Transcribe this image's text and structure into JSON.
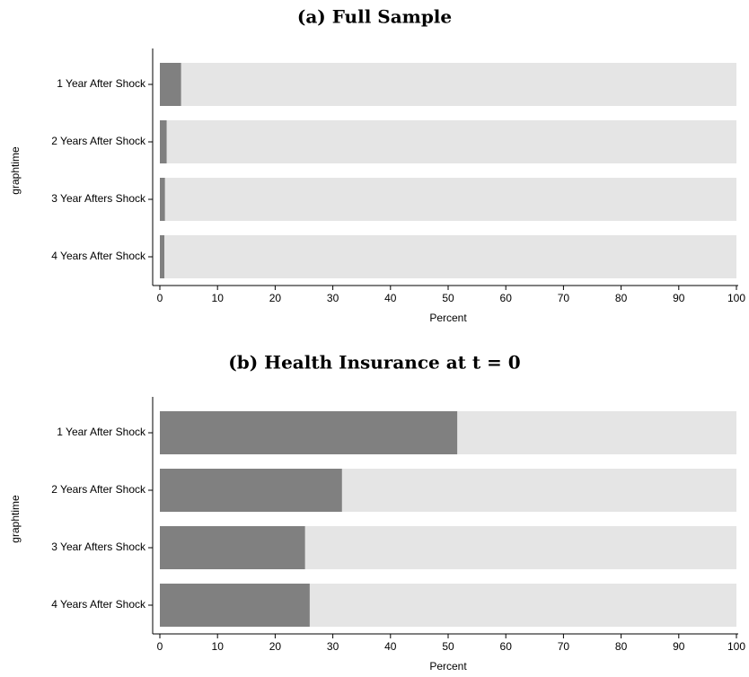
{
  "chart_data": [
    {
      "type": "stacked-bar-horizontal",
      "title": "(a) Full Sample",
      "ylabel": "graphtime",
      "xlabel": "Percent",
      "categories": [
        "1 Year After Shock",
        "2 Years After Shock",
        "3 Year Afters Shock",
        "4 Years After Shock"
      ],
      "series": [
        {
          "color": "#808080",
          "values": [
            3.7,
            1.2,
            0.9,
            0.8
          ]
        },
        {
          "color": "#e5e5e5",
          "values": [
            96.3,
            98.8,
            99.1,
            99.2
          ]
        }
      ],
      "xlim": [
        0,
        100
      ],
      "xticks": [
        0,
        10,
        20,
        30,
        40,
        50,
        60,
        70,
        80,
        90,
        100
      ]
    },
    {
      "type": "stacked-bar-horizontal",
      "title": "(b) Health Insurance at t = 0",
      "ylabel": "graphtime",
      "xlabel": "Percent",
      "categories": [
        "1 Year After Shock",
        "2 Years After Shock",
        "3 Year Afters Shock",
        "4 Years After Shock"
      ],
      "series": [
        {
          "color": "#808080",
          "values": [
            51.6,
            31.6,
            25.2,
            26.0
          ]
        },
        {
          "color": "#e5e5e5",
          "values": [
            48.4,
            68.4,
            74.8,
            74.0
          ]
        }
      ],
      "xlim": [
        0,
        100
      ],
      "xticks": [
        0,
        10,
        20,
        30,
        40,
        50,
        60,
        70,
        80,
        90,
        100
      ]
    }
  ]
}
